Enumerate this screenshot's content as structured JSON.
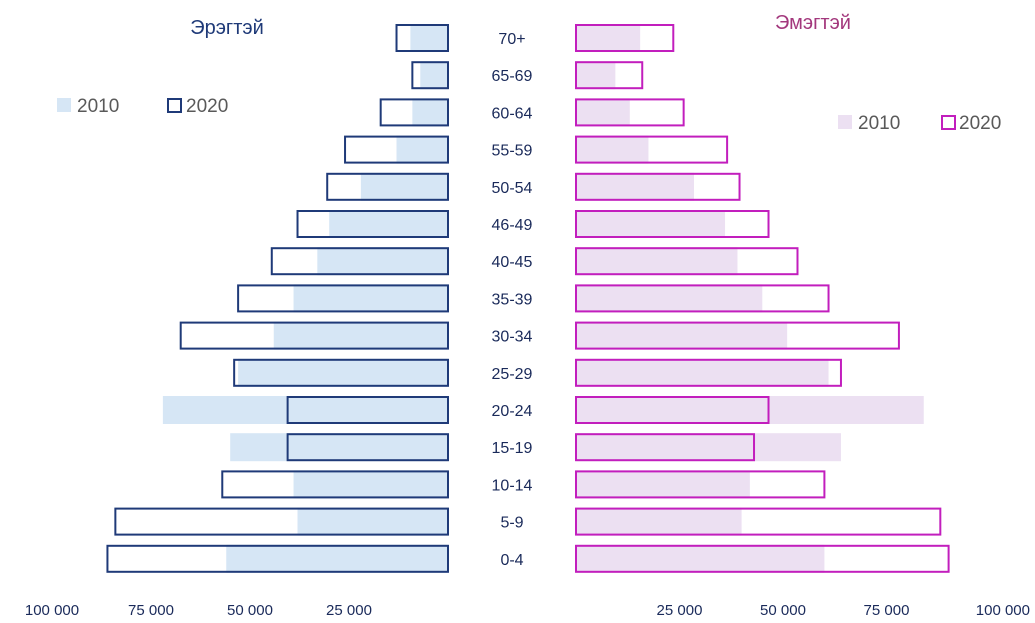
{
  "chart_data": {
    "type": "bar",
    "orientation": "horizontal-pyramid",
    "categories": [
      "70+",
      "65-69",
      "60-64",
      "55-59",
      "50-54",
      "46-49",
      "40-45",
      "35-39",
      "30-34",
      "25-29",
      "20-24",
      "15-19",
      "10-14",
      "5-9",
      "0-4"
    ],
    "male": {
      "title": "Эрэгтэй",
      "series": [
        {
          "name": "2010",
          "values": [
            9500,
            7000,
            9000,
            13000,
            22000,
            30000,
            33000,
            39000,
            44000,
            53000,
            72000,
            55000,
            39000,
            38000,
            56000
          ]
        },
        {
          "name": "2020",
          "values": [
            13000,
            9000,
            17000,
            26000,
            30500,
            38000,
            44500,
            53000,
            67500,
            54000,
            40500,
            40500,
            57000,
            84000,
            86000
          ]
        }
      ],
      "colors": {
        "2010": "#d6e6f5",
        "2020": "#1f3a78"
      }
    },
    "female": {
      "title": "Эмэгтэй",
      "series": [
        {
          "name": "2010",
          "values": [
            15500,
            9500,
            13000,
            17500,
            28500,
            36000,
            39000,
            45000,
            51000,
            61000,
            84000,
            64000,
            42000,
            40000,
            60000
          ]
        },
        {
          "name": "2020",
          "values": [
            23500,
            16000,
            26000,
            36500,
            39500,
            46500,
            53500,
            61000,
            78000,
            64000,
            46500,
            43000,
            60000,
            88000,
            90000
          ]
        }
      ],
      "colors": {
        "2010": "#ece0f2",
        "2020": "#c21ebd"
      }
    },
    "axis_ticks_left": [
      "100 000",
      "75 000",
      "50 000",
      "25 000"
    ],
    "axis_ticks_right": [
      "25 000",
      "50 000",
      "75 000",
      "100 000"
    ],
    "xlim": [
      0,
      100000
    ],
    "legend": {
      "male": [
        "2010",
        "2020"
      ],
      "female": [
        "2010",
        "2020"
      ]
    }
  }
}
